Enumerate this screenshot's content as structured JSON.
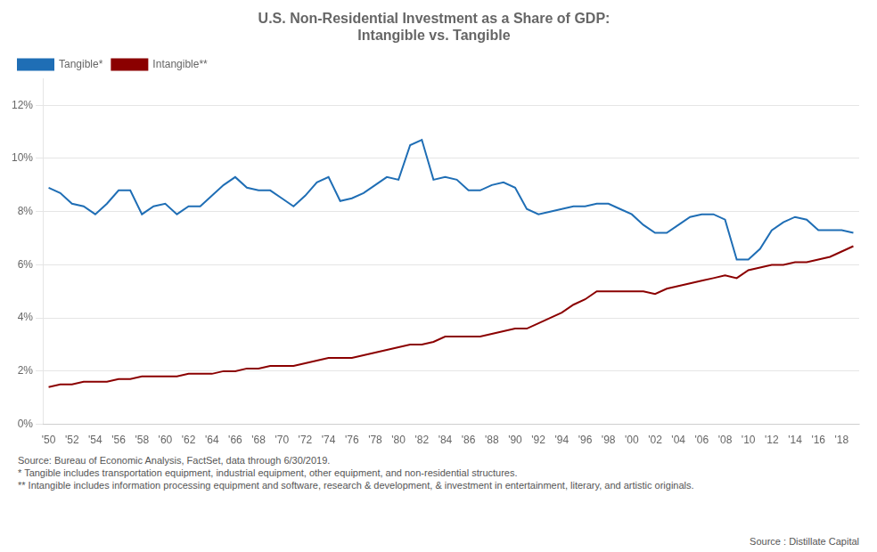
{
  "chart_data": {
    "type": "line",
    "title": "U.S. Non-Residential Investment as a Share of GDP:\nIntangible vs. Tangible",
    "x": [
      1950,
      1951,
      1952,
      1953,
      1954,
      1955,
      1956,
      1957,
      1958,
      1959,
      1960,
      1961,
      1962,
      1963,
      1964,
      1965,
      1966,
      1967,
      1968,
      1969,
      1970,
      1971,
      1972,
      1973,
      1974,
      1975,
      1976,
      1977,
      1978,
      1979,
      1980,
      1981,
      1982,
      1983,
      1984,
      1985,
      1986,
      1987,
      1988,
      1989,
      1990,
      1991,
      1992,
      1993,
      1994,
      1995,
      1996,
      1997,
      1998,
      1999,
      2000,
      2001,
      2002,
      2003,
      2004,
      2005,
      2006,
      2007,
      2008,
      2009,
      2010,
      2011,
      2012,
      2013,
      2014,
      2015,
      2016,
      2017,
      2018,
      2019
    ],
    "series": [
      {
        "name": "Tangible*",
        "color": "#1f6eb5",
        "values": [
          0.089,
          0.087,
          0.083,
          0.082,
          0.079,
          0.083,
          0.088,
          0.088,
          0.079,
          0.082,
          0.083,
          0.079,
          0.082,
          0.082,
          0.086,
          0.09,
          0.093,
          0.089,
          0.088,
          0.088,
          0.085,
          0.082,
          0.086,
          0.091,
          0.093,
          0.084,
          0.085,
          0.087,
          0.09,
          0.093,
          0.092,
          0.105,
          0.107,
          0.092,
          0.093,
          0.092,
          0.088,
          0.088,
          0.09,
          0.091,
          0.089,
          0.081,
          0.079,
          0.08,
          0.081,
          0.082,
          0.082,
          0.083,
          0.083,
          0.081,
          0.079,
          0.075,
          0.072,
          0.072,
          0.075,
          0.078,
          0.079,
          0.079,
          0.077,
          0.062,
          0.062,
          0.066,
          0.073,
          0.076,
          0.078,
          0.077,
          0.073,
          0.073,
          0.073,
          0.072
        ]
      },
      {
        "name": "Intangible**",
        "color": "#8b0000",
        "values": [
          0.014,
          0.015,
          0.015,
          0.016,
          0.016,
          0.016,
          0.017,
          0.017,
          0.018,
          0.018,
          0.018,
          0.018,
          0.019,
          0.019,
          0.019,
          0.02,
          0.02,
          0.021,
          0.021,
          0.022,
          0.022,
          0.022,
          0.023,
          0.024,
          0.025,
          0.025,
          0.025,
          0.026,
          0.027,
          0.028,
          0.029,
          0.03,
          0.03,
          0.031,
          0.033,
          0.033,
          0.033,
          0.033,
          0.034,
          0.035,
          0.036,
          0.036,
          0.038,
          0.04,
          0.042,
          0.045,
          0.047,
          0.05,
          0.05,
          0.05,
          0.05,
          0.05,
          0.049,
          0.051,
          0.052,
          0.053,
          0.054,
          0.055,
          0.056,
          0.055,
          0.058,
          0.059,
          0.06,
          0.06,
          0.061,
          0.061,
          0.062,
          0.063,
          0.065,
          0.067
        ]
      }
    ],
    "xlim": [
      1949.5,
      2019.5
    ],
    "xticks": [
      {
        "value": 1950,
        "label": "'50"
      },
      {
        "value": 1952,
        "label": "'52"
      },
      {
        "value": 1954,
        "label": "'54"
      },
      {
        "value": 1956,
        "label": "'56"
      },
      {
        "value": 1958,
        "label": "'58"
      },
      {
        "value": 1960,
        "label": "'60"
      },
      {
        "value": 1962,
        "label": "'62"
      },
      {
        "value": 1964,
        "label": "'64"
      },
      {
        "value": 1966,
        "label": "'66"
      },
      {
        "value": 1968,
        "label": "'68"
      },
      {
        "value": 1970,
        "label": "'70"
      },
      {
        "value": 1972,
        "label": "'72"
      },
      {
        "value": 1974,
        "label": "'74"
      },
      {
        "value": 1976,
        "label": "'76"
      },
      {
        "value": 1978,
        "label": "'78"
      },
      {
        "value": 1980,
        "label": "'80"
      },
      {
        "value": 1982,
        "label": "'82"
      },
      {
        "value": 1984,
        "label": "'84"
      },
      {
        "value": 1986,
        "label": "'86"
      },
      {
        "value": 1988,
        "label": "'88"
      },
      {
        "value": 1990,
        "label": "'90"
      },
      {
        "value": 1992,
        "label": "'92"
      },
      {
        "value": 1994,
        "label": "'94"
      },
      {
        "value": 1996,
        "label": "'96"
      },
      {
        "value": 1998,
        "label": "'98"
      },
      {
        "value": 2000,
        "label": "'00"
      },
      {
        "value": 2002,
        "label": "'02"
      },
      {
        "value": 2004,
        "label": "'04"
      },
      {
        "value": 2006,
        "label": "'06"
      },
      {
        "value": 2008,
        "label": "'08"
      },
      {
        "value": 2010,
        "label": "'10"
      },
      {
        "value": 2012,
        "label": "'12"
      },
      {
        "value": 2014,
        "label": "'14"
      },
      {
        "value": 2016,
        "label": "'16"
      },
      {
        "value": 2018,
        "label": "'18"
      }
    ],
    "ylim": [
      0,
      0.13
    ],
    "yticks": [
      {
        "value": 0.0,
        "label": "0%"
      },
      {
        "value": 0.02,
        "label": "2%"
      },
      {
        "value": 0.04,
        "label": "4%"
      },
      {
        "value": 0.06,
        "label": "6%"
      },
      {
        "value": 0.08,
        "label": "8%"
      },
      {
        "value": 0.1,
        "label": "10%"
      },
      {
        "value": 0.12,
        "label": "12%"
      }
    ],
    "grid": "y",
    "legend": "upper left",
    "footnotes": [
      "Source: Bureau of Economic Analysis, FactSet, data through 6/30/2019.",
      "* Tangible includes transportation equipment, industrial equipment, other equipment, and non-residential structures.",
      "** Intangible includes information processing equipment and software, research & development, & investment in entertainment, literary, and artistic originals."
    ],
    "source": "Source : Distillate Capital"
  }
}
